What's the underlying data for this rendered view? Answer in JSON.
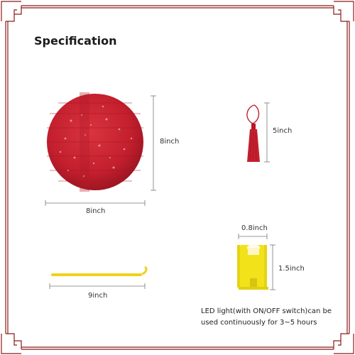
{
  "title": "Specification",
  "lantern": {
    "height_label": "8inch",
    "width_label": "8inch"
  },
  "tassel": {
    "length_label": "5inch"
  },
  "stick": {
    "length_label": "9inch"
  },
  "led": {
    "width_label": "0.8inch",
    "height_label": "1.5inch",
    "note": "LED light(with ON/OFF switch)can be used continuously for 3~5 hours"
  },
  "colors": {
    "border": "#8b1a1a",
    "lantern": "#c41f2e",
    "led_body": "#f2e21a",
    "stick": "#f0d21a"
  }
}
